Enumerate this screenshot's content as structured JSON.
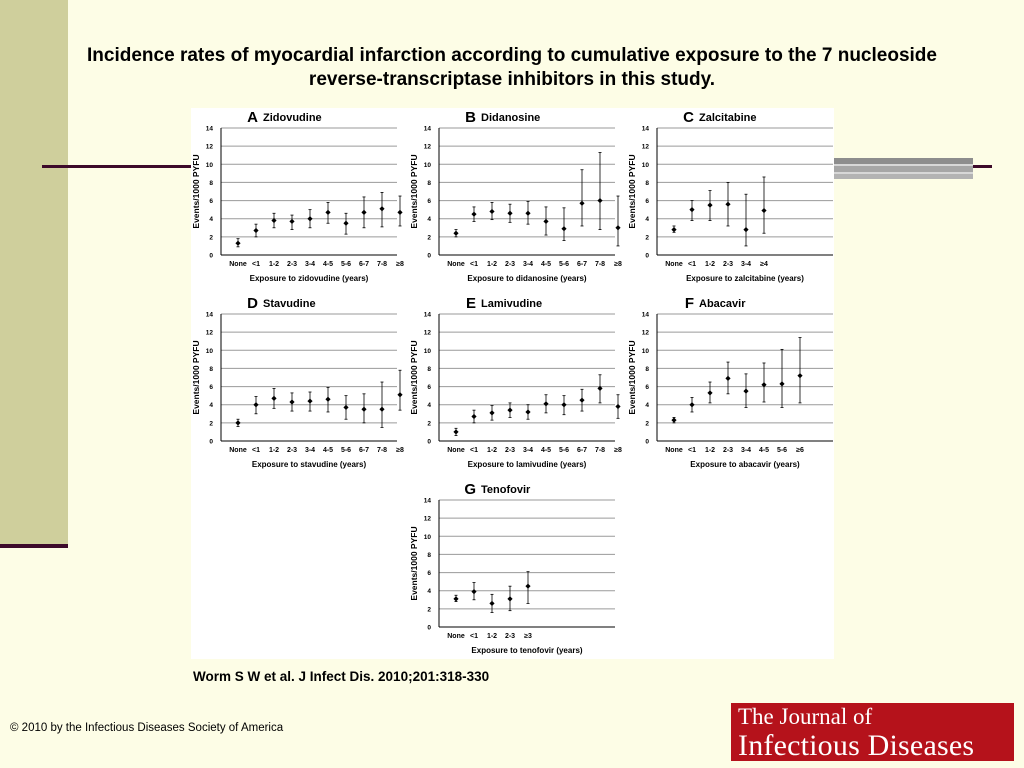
{
  "slide": {
    "title": "Incidence rates of myocardial infarction according to cumulative exposure to the 7 nucleoside reverse-transcriptase inhibitors in this study.",
    "citation": "Worm S W et al. J Infect Dis. 2010;201:318-330",
    "copyright": "© 2010 by the Infectious Diseases Society of America",
    "logo_line1": "The Journal of",
    "logo_line2": "Infectious Diseases"
  },
  "chart_data": [
    {
      "type": "scatter",
      "panel": "A",
      "title": "Zidovudine",
      "ylabel": "Events/1000 PYFU",
      "xlabel": "Exposure to zidovudine (years)",
      "ylim": [
        0,
        14
      ],
      "yticks": [
        0,
        2,
        4,
        6,
        8,
        10,
        12,
        14
      ],
      "categories": [
        "None",
        "<1",
        "1-2",
        "2-3",
        "3-4",
        "4-5",
        "5-6",
        "6-7",
        "7-8",
        "≥8"
      ],
      "values": [
        1.3,
        2.7,
        3.8,
        3.7,
        4.0,
        4.7,
        3.5,
        4.7,
        5.1,
        4.7
      ],
      "lower": [
        0.9,
        2.0,
        3.0,
        2.8,
        3.0,
        3.5,
        2.3,
        3.0,
        3.1,
        3.2
      ],
      "upper": [
        1.8,
        3.4,
        4.6,
        4.4,
        5.0,
        5.8,
        4.6,
        6.4,
        6.9,
        6.5
      ]
    },
    {
      "type": "scatter",
      "panel": "B",
      "title": "Didanosine",
      "ylabel": "Events/1000 PYFU",
      "xlabel": "Exposure to didanosine (years)",
      "ylim": [
        0,
        14
      ],
      "yticks": [
        0,
        2,
        4,
        6,
        8,
        10,
        12,
        14
      ],
      "categories": [
        "None",
        "<1",
        "1-2",
        "2-3",
        "3-4",
        "4-5",
        "5-6",
        "6-7",
        "7-8",
        "≥8"
      ],
      "values": [
        2.4,
        4.5,
        4.8,
        4.6,
        4.6,
        3.7,
        2.9,
        5.7,
        6.0,
        3.0
      ],
      "lower": [
        2.0,
        3.7,
        3.9,
        3.6,
        3.4,
        2.2,
        1.6,
        3.2,
        2.8,
        1.0
      ],
      "upper": [
        2.8,
        5.3,
        5.8,
        5.6,
        5.9,
        5.3,
        5.2,
        9.4,
        11.3,
        6.5
      ]
    },
    {
      "type": "scatter",
      "panel": "C",
      "title": "Zalcitabine",
      "ylabel": "Events/1000 PYFU",
      "xlabel": "Exposure to zalcitabine (years)",
      "ylim": [
        0,
        14
      ],
      "yticks": [
        0,
        2,
        4,
        6,
        8,
        10,
        12,
        14
      ],
      "categories": [
        "None",
        "<1",
        "1-2",
        "2-3",
        "3-4",
        "≥4"
      ],
      "values": [
        2.8,
        5.0,
        5.5,
        5.6,
        2.8,
        4.9
      ],
      "lower": [
        2.5,
        3.8,
        3.8,
        3.2,
        1.0,
        2.4
      ],
      "upper": [
        3.2,
        6.0,
        7.1,
        8.0,
        6.7,
        8.6
      ]
    },
    {
      "type": "scatter",
      "panel": "D",
      "title": "Stavudine",
      "ylabel": "Events/1000 PYFU",
      "xlabel": "Exposure to stavudine (years)",
      "ylim": [
        0,
        14
      ],
      "yticks": [
        0,
        2,
        4,
        6,
        8,
        10,
        12,
        14
      ],
      "categories": [
        "None",
        "<1",
        "1-2",
        "2-3",
        "3-4",
        "4-5",
        "5-6",
        "6-7",
        "7-8",
        "≥8"
      ],
      "values": [
        2.0,
        4.0,
        4.7,
        4.3,
        4.4,
        4.6,
        3.7,
        3.5,
        3.5,
        5.1
      ],
      "lower": [
        1.6,
        3.0,
        3.6,
        3.3,
        3.3,
        3.2,
        2.4,
        2.0,
        1.5,
        3.4
      ],
      "upper": [
        2.4,
        4.9,
        5.8,
        5.3,
        5.4,
        5.9,
        5.0,
        5.2,
        6.5,
        7.8
      ]
    },
    {
      "type": "scatter",
      "panel": "E",
      "title": "Lamivudine",
      "ylabel": "Events/1000 PYFU",
      "xlabel": "Exposure to lamivudine (years)",
      "ylim": [
        0,
        14
      ],
      "yticks": [
        0,
        2,
        4,
        6,
        8,
        10,
        12,
        14
      ],
      "categories": [
        "None",
        "<1",
        "1-2",
        "2-3",
        "3-4",
        "4-5",
        "5-6",
        "6-7",
        "7-8",
        "≥8"
      ],
      "values": [
        1.0,
        2.7,
        3.1,
        3.4,
        3.2,
        4.1,
        4.0,
        4.5,
        5.8,
        3.8
      ],
      "lower": [
        0.6,
        2.0,
        2.3,
        2.6,
        2.4,
        3.1,
        2.9,
        3.3,
        4.2,
        2.5
      ],
      "upper": [
        1.4,
        3.4,
        3.9,
        4.2,
        4.0,
        5.1,
        5.0,
        5.7,
        7.3,
        5.1
      ]
    },
    {
      "type": "scatter",
      "panel": "F",
      "title": "Abacavir",
      "ylabel": "Events/1000 PYFU",
      "xlabel": "Exposure to abacavir (years)",
      "ylim": [
        0,
        14
      ],
      "yticks": [
        0,
        2,
        4,
        6,
        8,
        10,
        12,
        14
      ],
      "categories": [
        "None",
        "<1",
        "1-2",
        "2-3",
        "3-4",
        "4-5",
        "5-6",
        "≥6"
      ],
      "values": [
        2.3,
        4.0,
        5.3,
        6.9,
        5.5,
        6.2,
        6.3,
        7.2
      ],
      "lower": [
        2.0,
        3.2,
        4.2,
        5.2,
        3.7,
        4.3,
        3.7,
        4.2
      ],
      "upper": [
        2.6,
        4.8,
        6.5,
        8.7,
        7.4,
        8.6,
        10.1,
        11.4
      ]
    },
    {
      "type": "scatter",
      "panel": "G",
      "title": "Tenofovir",
      "ylabel": "Events/1000 PYFU",
      "xlabel": "Exposure to tenofovir (years)",
      "ylim": [
        0,
        14
      ],
      "yticks": [
        0,
        2,
        4,
        6,
        8,
        10,
        12,
        14
      ],
      "categories": [
        "None",
        "<1",
        "1-2",
        "2-3",
        "≥3"
      ],
      "values": [
        3.1,
        3.9,
        2.6,
        3.1,
        4.5
      ],
      "lower": [
        2.8,
        3.0,
        1.6,
        1.8,
        2.6
      ],
      "upper": [
        3.5,
        4.9,
        3.6,
        4.5,
        6.1
      ]
    }
  ]
}
